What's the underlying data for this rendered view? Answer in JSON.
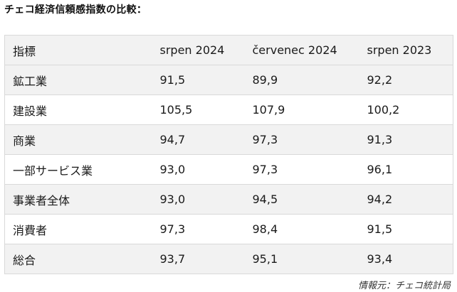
{
  "title": "チェコ経済信頼感指数の比較：",
  "table": {
    "headers": [
      "指標",
      "srpen 2024",
      "červenec 2024",
      "srpen 2023"
    ],
    "rows": [
      [
        "鉱工業",
        "91,5",
        "89,9",
        "92,2"
      ],
      [
        "建設業",
        "105,5",
        "107,9",
        "100,2"
      ],
      [
        "商業",
        "94,7",
        "97,3",
        "91,3"
      ],
      [
        "一部サービス業",
        "93,0",
        "97,3",
        "96,1"
      ],
      [
        "事業者全体",
        "93,0",
        "94,5",
        "94,2"
      ],
      [
        "消費者",
        "97,3",
        "98,4",
        "91,5"
      ],
      [
        "総合",
        "93,7",
        "95,1",
        "93,4"
      ]
    ]
  },
  "source": "情報元：チェコ統計局"
}
